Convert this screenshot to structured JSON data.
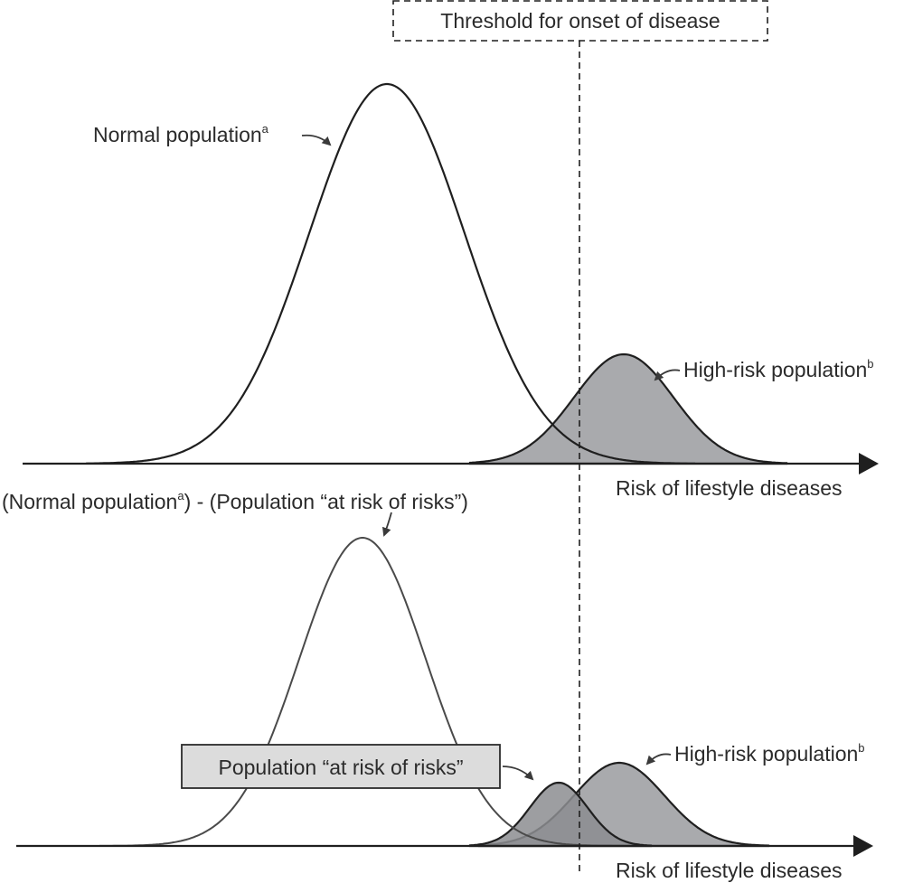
{
  "threshold": {
    "label": "Threshold for onset of disease"
  },
  "top_panel": {
    "normal_label": "Normal population",
    "normal_sup": "a",
    "highrisk_label": "High-risk population",
    "highrisk_sup": "b",
    "axis_label": "Risk of lifestyle diseases"
  },
  "bottom_panel": {
    "title_part1": "(Normal population",
    "title_sup": "a",
    "title_part2": ") - (Population “at risk of risks”)",
    "at_risk_box_label": "Population “at risk of risks”",
    "highrisk_label": "High-risk population",
    "highrisk_sup": "b",
    "axis_label": "Risk of lifestyle diseases"
  },
  "colors": {
    "line": "#1f1f1f",
    "gray_line": "#4a4a4a",
    "highrisk_fill": "#a9aaad",
    "atrisk_fill": "#8c8d90",
    "box_fill": "#dcdcdc",
    "text": "#2b2b2b"
  }
}
